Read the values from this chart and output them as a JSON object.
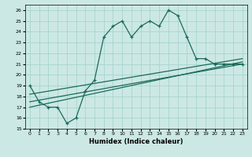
{
  "xlabel": "Humidex (Indice chaleur)",
  "bg_color": "#cce8e4",
  "grid_color": "#a8d4cf",
  "line_color": "#1a6b5a",
  "x": [
    0,
    1,
    2,
    3,
    4,
    5,
    6,
    7,
    8,
    9,
    10,
    11,
    12,
    13,
    14,
    15,
    16,
    17,
    18,
    19,
    20,
    21,
    22,
    23
  ],
  "y_main": [
    19.0,
    17.5,
    17.0,
    17.0,
    15.5,
    16.0,
    18.5,
    19.5,
    23.5,
    24.5,
    25.0,
    23.5,
    24.5,
    25.0,
    24.5,
    26.0,
    25.5,
    23.5,
    21.5,
    21.5,
    21.0,
    21.0,
    21.0,
    21.0
  ],
  "trend_lines": [
    {
      "x0": 0,
      "y0": 17.0,
      "x1": 23,
      "y1": 21.2
    },
    {
      "x0": 0,
      "y0": 17.5,
      "x1": 23,
      "y1": 21.0
    },
    {
      "x0": 0,
      "y0": 18.2,
      "x1": 23,
      "y1": 21.5
    }
  ],
  "ylim": [
    15,
    26.5
  ],
  "xlim": [
    -0.5,
    23.5
  ],
  "yticks": [
    15,
    16,
    17,
    18,
    19,
    20,
    21,
    22,
    23,
    24,
    25,
    26
  ],
  "xticks": [
    0,
    1,
    2,
    3,
    4,
    5,
    6,
    7,
    8,
    9,
    10,
    11,
    12,
    13,
    14,
    15,
    16,
    17,
    18,
    19,
    20,
    21,
    22,
    23
  ]
}
